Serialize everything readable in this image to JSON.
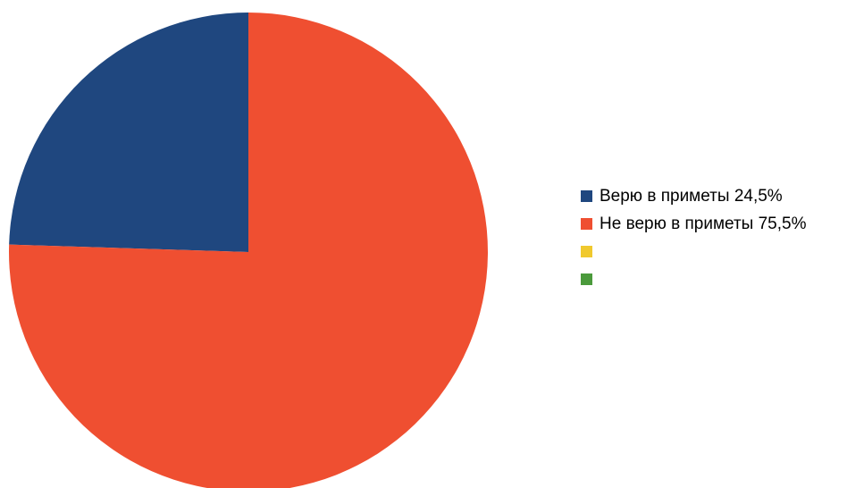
{
  "chart_data": {
    "type": "pie",
    "slices": [
      {
        "label": "Верю в приметы 24,5%",
        "value": 24.5,
        "color": "#1f477f"
      },
      {
        "label": "Не верю в приметы 75,5%",
        "value": 75.5,
        "color": "#ef4f31"
      },
      {
        "label": "",
        "value": 0,
        "color": "#f0c92e"
      },
      {
        "label": "",
        "value": 0,
        "color": "#4b9a3c"
      }
    ],
    "start_angle": "12 o'clock",
    "direction": "counterclockwise",
    "legend_position": "right"
  }
}
